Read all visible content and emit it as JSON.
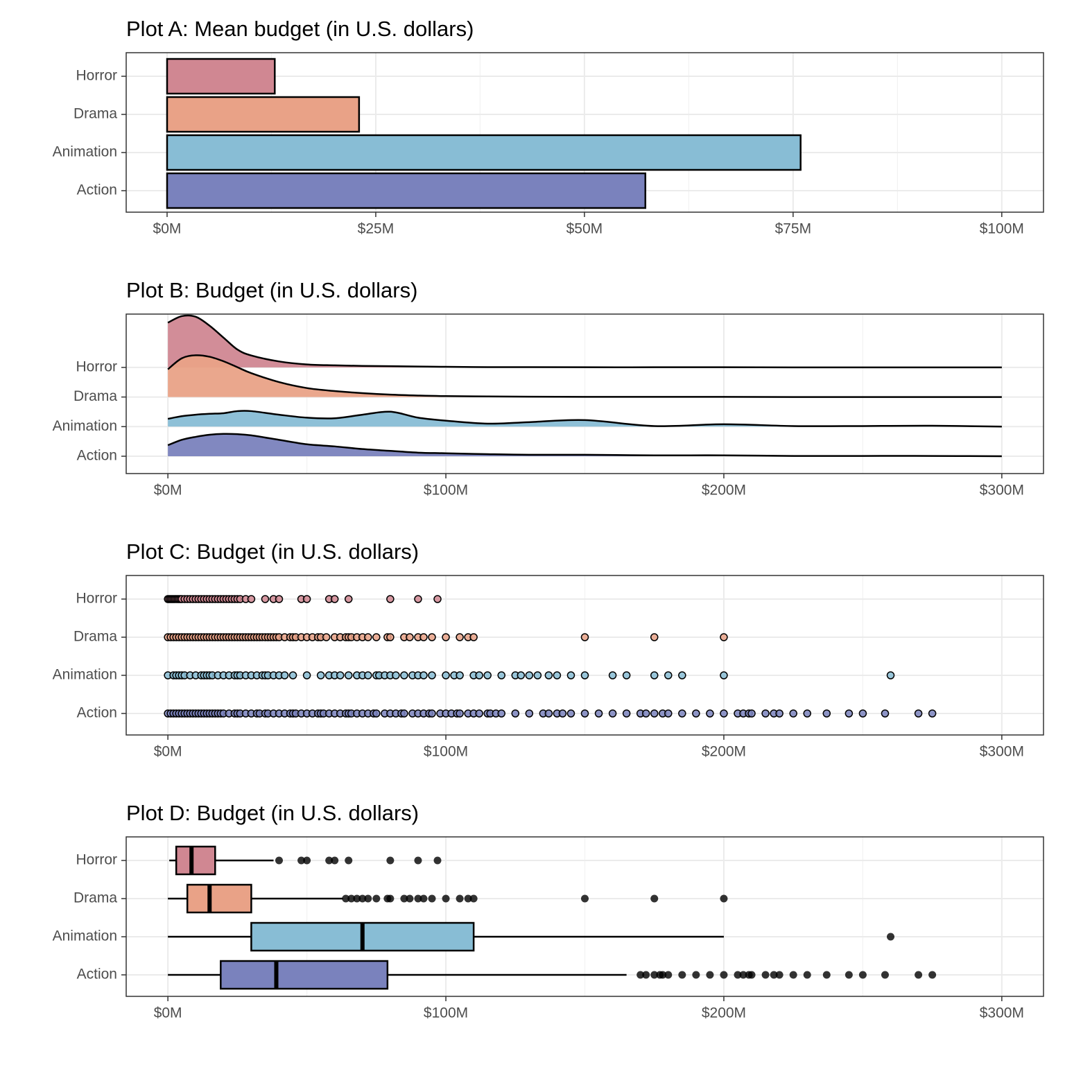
{
  "chart_data": [
    {
      "type": "bar",
      "title": "Plot A: Mean budget (in U.S. dollars)",
      "categories": [
        "Horror",
        "Drama",
        "Animation",
        "Action"
      ],
      "values": [
        12.9,
        23.0,
        75.9,
        57.3
      ],
      "colors": [
        "#d08792",
        "#e9a287",
        "#88bdd5",
        "#7a82bd"
      ],
      "xlim": [
        -4.9,
        105
      ],
      "xticks": [
        {
          "value": 0,
          "label": "$0M"
        },
        {
          "value": 25,
          "label": "$25M"
        },
        {
          "value": 50,
          "label": "$50M"
        },
        {
          "value": 75,
          "label": "$75M"
        },
        {
          "value": 100,
          "label": "$100M"
        }
      ],
      "xminorticks": [
        12.5,
        37.5,
        62.5,
        87.5
      ],
      "grid": true
    },
    {
      "type": "ridgeline",
      "title": "Plot B: Budget (in U.S. dollars)",
      "categories": [
        "Horror",
        "Drama",
        "Animation",
        "Action"
      ],
      "x": [
        0,
        5,
        10,
        15,
        20,
        25,
        30,
        40,
        50,
        60,
        70,
        80,
        90,
        100,
        115,
        130,
        150,
        175,
        200,
        225,
        250,
        275,
        300
      ],
      "series": [
        {
          "color": "#d08792",
          "values": [
            1.5,
            1.72,
            1.7,
            1.4,
            1.0,
            0.6,
            0.4,
            0.2,
            0.1,
            0.07,
            0.05,
            0.04,
            0.03,
            0.02,
            0.01,
            0.01,
            0.005,
            0.005,
            0.005,
            0.0,
            0.0,
            0.0,
            0.0
          ]
        },
        {
          "color": "#e9a287",
          "values": [
            0.93,
            1.3,
            1.4,
            1.35,
            1.2,
            1.0,
            0.8,
            0.5,
            0.3,
            0.2,
            0.13,
            0.08,
            0.05,
            0.03,
            0.02,
            0.01,
            0.005,
            0.005,
            0.005,
            0.0,
            0.0,
            0.0,
            0.0
          ]
        },
        {
          "color": "#88bdd5",
          "values": [
            0.26,
            0.35,
            0.4,
            0.43,
            0.45,
            0.52,
            0.52,
            0.4,
            0.3,
            0.28,
            0.4,
            0.5,
            0.3,
            0.2,
            0.1,
            0.15,
            0.22,
            0.02,
            0.08,
            0.02,
            0.02,
            0.03,
            0.0
          ]
        },
        {
          "color": "#7a82bd",
          "values": [
            0.37,
            0.55,
            0.65,
            0.72,
            0.75,
            0.74,
            0.7,
            0.55,
            0.4,
            0.33,
            0.24,
            0.18,
            0.12,
            0.1,
            0.07,
            0.05,
            0.05,
            0.03,
            0.03,
            0.01,
            0.01,
            0.01,
            0.0
          ]
        }
      ],
      "xlim": [
        -15,
        315
      ],
      "xticks": [
        {
          "value": 0,
          "label": "$0M"
        },
        {
          "value": 100,
          "label": "$100M"
        },
        {
          "value": 200,
          "label": "$200M"
        },
        {
          "value": 300,
          "label": "$300M"
        }
      ],
      "xminorticks": [
        50,
        150,
        250
      ],
      "grid": true
    },
    {
      "type": "strip",
      "title": "Plot C: Budget (in U.S. dollars)",
      "categories": [
        "Horror",
        "Drama",
        "Animation",
        "Action"
      ],
      "series": [
        {
          "color": "#d08792",
          "values": [
            0,
            0.5,
            1,
            1.5,
            2,
            2.5,
            3,
            3.5,
            4,
            4.5,
            5,
            6,
            7,
            8,
            9,
            10,
            11,
            12,
            13,
            14,
            15,
            16,
            17,
            18,
            19,
            20,
            21,
            22,
            23,
            24,
            25,
            26,
            28,
            30,
            35,
            38,
            40,
            48,
            50,
            58,
            60,
            65,
            80,
            90,
            97
          ]
        },
        {
          "color": "#e9a287",
          "values": [
            0,
            1,
            2,
            3,
            4,
            5,
            6,
            7,
            8,
            9,
            10,
            11,
            12,
            13,
            14,
            15,
            16,
            17,
            18,
            19,
            20,
            21,
            22,
            23,
            24,
            25,
            26,
            27,
            28,
            29,
            30,
            31,
            32,
            33,
            34,
            35,
            36,
            37,
            38,
            39,
            40,
            42,
            44,
            45,
            46,
            48,
            50,
            52,
            54,
            55,
            57,
            60,
            62,
            64,
            65,
            66,
            68,
            70,
            72,
            75,
            79,
            80,
            85,
            87,
            90,
            92,
            95,
            100,
            105,
            108,
            110,
            150,
            175,
            200
          ]
        },
        {
          "color": "#88bdd5",
          "values": [
            0,
            2,
            3,
            4,
            5,
            6,
            8,
            10,
            12,
            13,
            14,
            15,
            16,
            18,
            20,
            22,
            24,
            25,
            26,
            28,
            30,
            32,
            34,
            35,
            36,
            38,
            40,
            42,
            45,
            50,
            55,
            58,
            60,
            62,
            65,
            68,
            70,
            72,
            75,
            76,
            78,
            80,
            82,
            85,
            88,
            90,
            92,
            95,
            100,
            103,
            105,
            110,
            112,
            115,
            120,
            125,
            127,
            130,
            133,
            137,
            140,
            145,
            150,
            160,
            165,
            175,
            180,
            185,
            200,
            260
          ]
        },
        {
          "color": "#7a82bd",
          "values": [
            0,
            1,
            2,
            3,
            4,
            5,
            6,
            7,
            8,
            9,
            10,
            11,
            12,
            13,
            14,
            15,
            16,
            17,
            18,
            19,
            20,
            22,
            24,
            25,
            26,
            28,
            30,
            32,
            33,
            35,
            36,
            38,
            40,
            42,
            44,
            45,
            46,
            48,
            50,
            52,
            54,
            55,
            56,
            58,
            60,
            62,
            64,
            65,
            66,
            68,
            70,
            72,
            74,
            75,
            78,
            80,
            82,
            84,
            85,
            88,
            90,
            92,
            94,
            95,
            98,
            100,
            102,
            104,
            105,
            108,
            110,
            112,
            115,
            116,
            118,
            120,
            125,
            130,
            135,
            137,
            140,
            142,
            145,
            150,
            155,
            160,
            165,
            170,
            172,
            175,
            178,
            180,
            185,
            190,
            195,
            200,
            205,
            207,
            209,
            210,
            215,
            218,
            220,
            225,
            230,
            237,
            245,
            250,
            258,
            270,
            275
          ]
        }
      ],
      "xlim": [
        -15,
        315
      ],
      "xticks": [
        {
          "value": 0,
          "label": "$0M"
        },
        {
          "value": 100,
          "label": "$100M"
        },
        {
          "value": 200,
          "label": "$200M"
        },
        {
          "value": 300,
          "label": "$300M"
        }
      ],
      "xminorticks": [
        50,
        150,
        250
      ],
      "grid": true
    },
    {
      "type": "boxplot",
      "title": "Plot D: Budget (in U.S. dollars)",
      "categories": [
        "Horror",
        "Drama",
        "Animation",
        "Action"
      ],
      "boxes": [
        {
          "color": "#d08792",
          "min": 0.5,
          "q1": 3,
          "median": 8.5,
          "q3": 17,
          "max": 38,
          "outliers": [
            40,
            48,
            50,
            58,
            60,
            65,
            80,
            90,
            97
          ]
        },
        {
          "color": "#e9a287",
          "min": 0,
          "q1": 7,
          "median": 15,
          "q3": 30,
          "max": 63,
          "outliers": [
            64,
            66,
            68,
            70,
            72,
            75,
            79,
            80,
            85,
            87,
            90,
            92,
            95,
            100,
            105,
            108,
            110,
            150,
            175,
            200
          ]
        },
        {
          "color": "#88bdd5",
          "min": 0,
          "q1": 30,
          "median": 70,
          "q3": 110,
          "max": 200,
          "outliers": [
            260
          ]
        },
        {
          "color": "#7a82bd",
          "min": 0,
          "q1": 19,
          "median": 39,
          "q3": 79,
          "max": 165,
          "outliers": [
            170,
            172,
            175,
            177,
            178,
            180,
            185,
            190,
            195,
            200,
            205,
            207,
            209,
            210,
            215,
            218,
            220,
            225,
            230,
            237,
            245,
            250,
            258,
            270,
            275
          ]
        }
      ],
      "xlim": [
        -15,
        315
      ],
      "xticks": [
        {
          "value": 0,
          "label": "$0M"
        },
        {
          "value": 100,
          "label": "$100M"
        },
        {
          "value": 200,
          "label": "$200M"
        },
        {
          "value": 300,
          "label": "$300M"
        }
      ],
      "xminorticks": [
        50,
        150,
        250
      ],
      "grid": true
    }
  ]
}
